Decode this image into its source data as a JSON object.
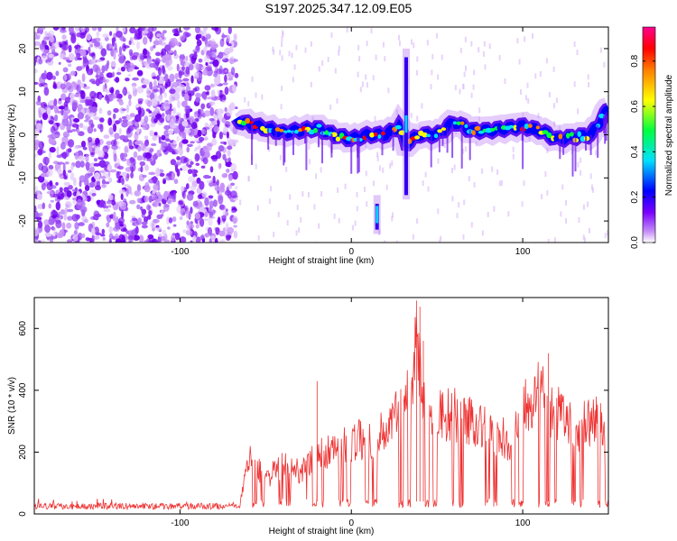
{
  "title": "S197.2025.347.12.09.E05",
  "chart_data": [
    {
      "type": "heatmap",
      "xlabel": "Height of straight line (km)",
      "ylabel": "Frequency (Hz)",
      "xlim": [
        -185,
        150
      ],
      "ylim": [
        -25,
        25
      ],
      "xticks": [
        -100,
        0,
        100
      ],
      "xtick_labels": [
        "-100",
        "0",
        "100"
      ],
      "yticks": [
        -20,
        -10,
        0,
        10,
        20
      ],
      "ytick_labels": [
        "-20",
        "-10",
        "0",
        "10",
        "20"
      ],
      "noise_region_end_km": -67,
      "ridge": [
        {
          "x": -67,
          "f": 3.5
        },
        {
          "x": -60,
          "f": 2.5
        },
        {
          "x": -50,
          "f": 1.5
        },
        {
          "x": -40,
          "f": 0.5
        },
        {
          "x": -30,
          "f": 1
        },
        {
          "x": -20,
          "f": 1.5
        },
        {
          "x": -10,
          "f": 0
        },
        {
          "x": 0,
          "f": -1
        },
        {
          "x": 10,
          "f": 0
        },
        {
          "x": 20,
          "f": 0
        },
        {
          "x": 28,
          "f": 2
        },
        {
          "x": 32,
          "f": -2
        },
        {
          "x": 40,
          "f": 0
        },
        {
          "x": 50,
          "f": 0
        },
        {
          "x": 60,
          "f": 3
        },
        {
          "x": 70,
          "f": 1
        },
        {
          "x": 80,
          "f": 1
        },
        {
          "x": 90,
          "f": 1.5
        },
        {
          "x": 100,
          "f": 2
        },
        {
          "x": 110,
          "f": 1
        },
        {
          "x": 120,
          "f": -1
        },
        {
          "x": 130,
          "f": -0.5
        },
        {
          "x": 140,
          "f": 0
        },
        {
          "x": 150,
          "f": 6
        }
      ],
      "features": [
        {
          "name": "spike-15km",
          "x": 15,
          "f_min": -23,
          "f_max": -14
        },
        {
          "name": "vertical-streak-32km",
          "x": 32,
          "f_min": -15,
          "f_max": 20
        }
      ],
      "colorbar": {
        "label": "Normalized spectral amplitude",
        "range": [
          0.0,
          0.95
        ],
        "ticks": [
          0.0,
          0.2,
          0.4,
          0.6,
          0.8
        ],
        "tick_labels": [
          "0.0",
          "0.2",
          "0.4",
          "0.6",
          "0.8"
        ],
        "colors": [
          "#ffffff",
          "#c690f8",
          "#7a00ff",
          "#0000ff",
          "#00e0ff",
          "#00ff40",
          "#ffff00",
          "#ff7f00",
          "#ff0000",
          "#ff0090"
        ]
      }
    },
    {
      "type": "line",
      "xlabel": "Height of straight line (km)",
      "ylabel": "SNR (10 * v/v)",
      "xlim": [
        -185,
        150
      ],
      "ylim": [
        0,
        700
      ],
      "xticks": [
        -100,
        0,
        100
      ],
      "xtick_labels": [
        "-100",
        "0",
        "100"
      ],
      "yticks": [
        0,
        200,
        400,
        600
      ],
      "ytick_labels": [
        "0",
        "200",
        "400",
        "600"
      ],
      "color": "#ee3333",
      "noise_floor": 25,
      "envelope": [
        {
          "x": -185,
          "v": 35
        },
        {
          "x": -65,
          "v": 35
        },
        {
          "x": -60,
          "v": 230
        },
        {
          "x": -50,
          "v": 150
        },
        {
          "x": -40,
          "v": 200
        },
        {
          "x": -30,
          "v": 180
        },
        {
          "x": -20,
          "v": 240
        },
        {
          "x": -10,
          "v": 270
        },
        {
          "x": 0,
          "v": 300
        },
        {
          "x": 10,
          "v": 320
        },
        {
          "x": 20,
          "v": 340
        },
        {
          "x": 28,
          "v": 430
        },
        {
          "x": 35,
          "v": 560
        },
        {
          "x": 38,
          "v": 680
        },
        {
          "x": 45,
          "v": 400
        },
        {
          "x": 55,
          "v": 420
        },
        {
          "x": 65,
          "v": 400
        },
        {
          "x": 75,
          "v": 380
        },
        {
          "x": 85,
          "v": 320
        },
        {
          "x": 95,
          "v": 300
        },
        {
          "x": 100,
          "v": 480
        },
        {
          "x": 110,
          "v": 500
        },
        {
          "x": 120,
          "v": 420
        },
        {
          "x": 130,
          "v": 360
        },
        {
          "x": 140,
          "v": 380
        },
        {
          "x": 150,
          "v": 400
        }
      ],
      "spikes": [
        {
          "x": -20,
          "v": 430
        },
        {
          "x": 38,
          "v": 690
        },
        {
          "x": 40,
          "v": 670
        },
        {
          "x": 42,
          "v": 560
        },
        {
          "x": 115,
          "v": 520
        }
      ]
    }
  ]
}
